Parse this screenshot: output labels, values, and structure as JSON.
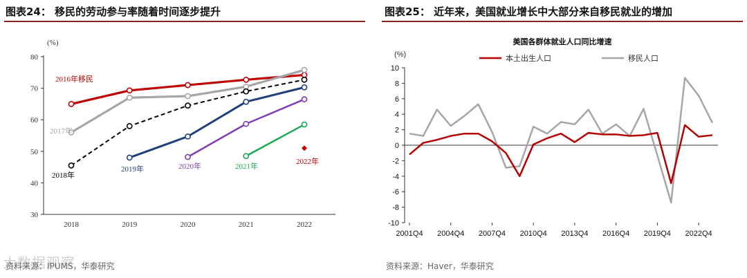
{
  "left": {
    "title": "图表24：  移民的劳动参与率随着时间逐步提升",
    "source": "资料来源：IPUMS，华泰研究",
    "watermark": "大数据观察",
    "colors": {
      "c2016": "#c00000",
      "c2017": "#a6a6a6",
      "c2018": "#000000",
      "c2019": "#1f3f7a",
      "c2020": "#7f3fb2",
      "c2021": "#1aaa55",
      "c2022": "#c00000"
    }
  },
  "right": {
    "title": "图表25：  近年来，美国就业增长中大部分来自移民就业的增加",
    "source": "资料来源：Haver，华泰研究",
    "colors": {
      "native": "#b40000",
      "immigrant": "#a6a6a6"
    }
  },
  "chart_data": [
    {
      "type": "line",
      "title": "",
      "ylabel": "(%)",
      "xlabel": "",
      "categories": [
        "2018",
        "2019",
        "2020",
        "2021",
        "2022"
      ],
      "ylim": [
        30,
        80
      ],
      "yticks": [
        "30",
        "40",
        "50",
        "60",
        "70",
        "80"
      ],
      "series": [
        {
          "name": "2016年移民",
          "values": [
            65,
            69.3,
            71,
            72.7,
            74.2
          ]
        },
        {
          "name": "2017年",
          "values": [
            56,
            67,
            67.5,
            70.5,
            75.8
          ]
        },
        {
          "name": "2018年",
          "values": [
            45.5,
            58,
            64.5,
            69,
            72.7
          ]
        },
        {
          "name": "2019年",
          "values": [
            null,
            48,
            54.7,
            65.7,
            70.3
          ]
        },
        {
          "name": "2020年",
          "values": [
            null,
            null,
            48.2,
            58.7,
            66.5
          ]
        },
        {
          "name": "2021年",
          "values": [
            null,
            null,
            null,
            48.5,
            58.5
          ]
        },
        {
          "name": "2022年",
          "values": [
            null,
            null,
            null,
            null,
            51
          ]
        }
      ]
    },
    {
      "type": "line",
      "title": "美国各群体就业人口同比增速",
      "ylabel": "(%)",
      "xlabel": "",
      "x": [
        "2001Q4",
        "2002Q4",
        "2003Q4",
        "2004Q4",
        "2005Q4",
        "2006Q4",
        "2007Q4",
        "2008Q4",
        "2009Q4",
        "2010Q4",
        "2011Q4",
        "2012Q4",
        "2013Q4",
        "2014Q4",
        "2015Q4",
        "2016Q4",
        "2017Q4",
        "2018Q4",
        "2019Q4",
        "2020Q4",
        "2021Q4",
        "2022Q4",
        "2023Q4"
      ],
      "xticks": [
        "2001Q4",
        "2004Q4",
        "2007Q4",
        "2010Q4",
        "2013Q4",
        "2016Q4",
        "2019Q4",
        "2022Q4"
      ],
      "ylim": [
        -10,
        10
      ],
      "yticks": [
        "-10",
        "-8",
        "-6",
        "-4",
        "-2",
        "0",
        "2",
        "4",
        "6",
        "8",
        "10"
      ],
      "legend_position": "top",
      "series": [
        {
          "name": "本土出生人口",
          "values": [
            -1.2,
            0.3,
            0.7,
            1.2,
            1.5,
            1.5,
            0.5,
            -1.0,
            -4.0,
            0.1,
            0.9,
            1.5,
            0.4,
            1.6,
            1.4,
            1.4,
            1.2,
            1.3,
            1.6,
            -4.9,
            2.6,
            1.1,
            1.3
          ]
        },
        {
          "name": "移民人口",
          "values": [
            1.5,
            1.2,
            4.6,
            2.5,
            3.8,
            5.3,
            1.7,
            -2.9,
            -2.7,
            2.4,
            1.5,
            3.0,
            2.7,
            4.6,
            1.5,
            2.7,
            1.2,
            4.7,
            -1.3,
            -7.4,
            8.7,
            6.4,
            2.9
          ]
        }
      ]
    }
  ]
}
